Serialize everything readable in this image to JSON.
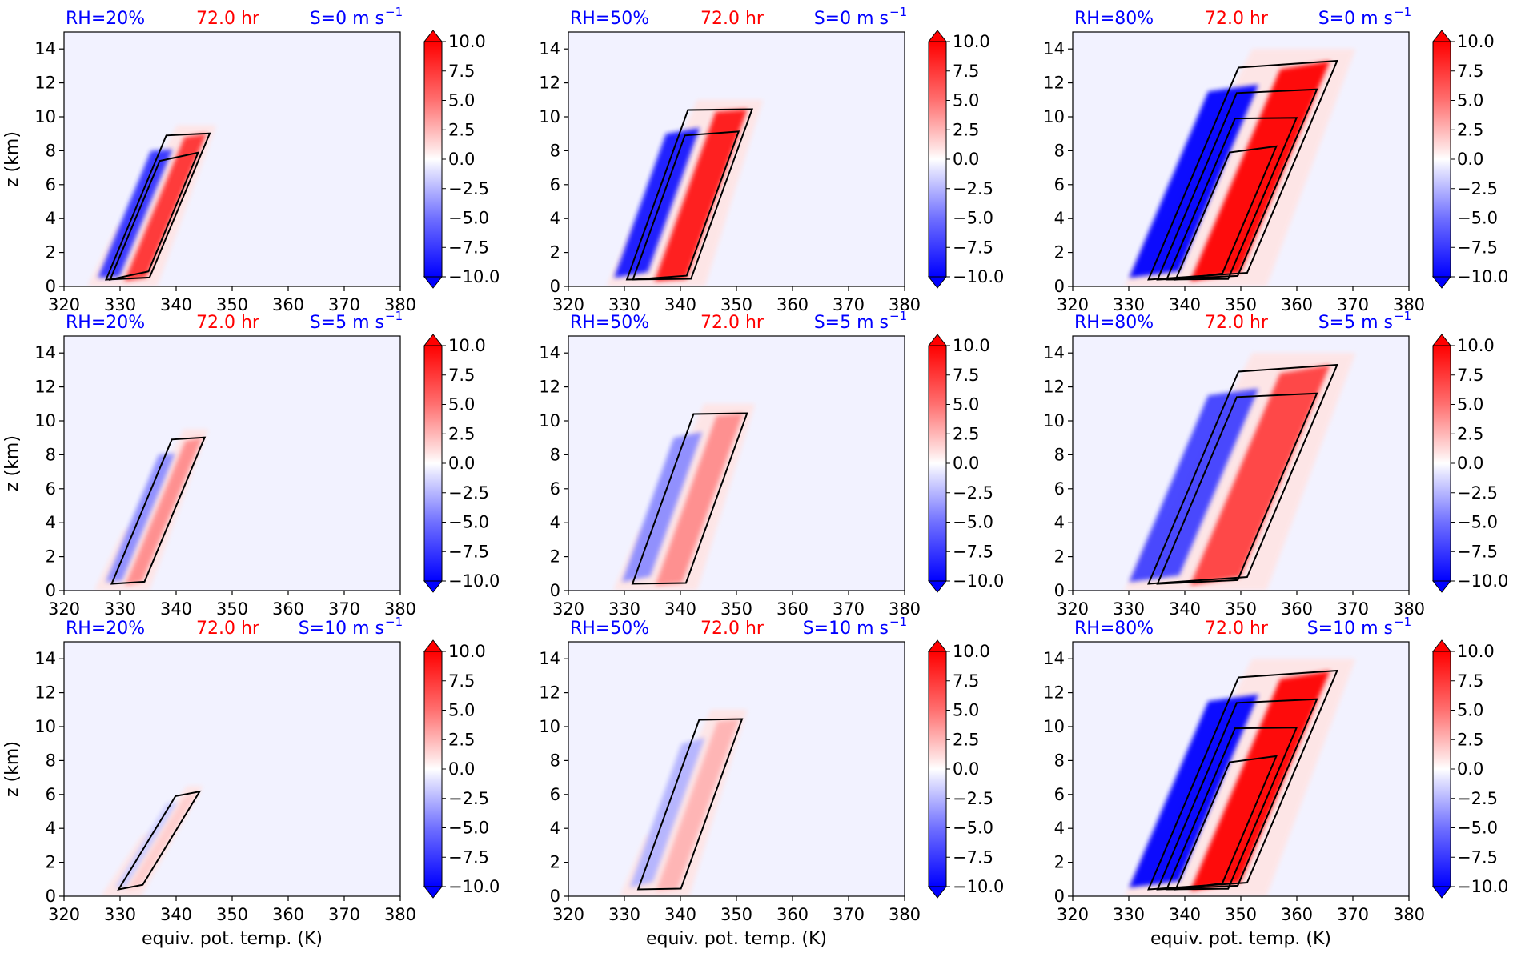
{
  "figure": {
    "x_label": "equiv. pot. temp. (K)",
    "y_label": "z (km)",
    "colorbar_ticks": [
      "10.0",
      "7.5",
      "5.0",
      "2.5",
      "0.0",
      "−2.5",
      "−5.0",
      "−7.5",
      "−10.0"
    ],
    "colors": {
      "positive": "#ff0000",
      "negative": "#0000ff",
      "background": "#f2f2ff",
      "contour": "#000000",
      "rh_label": "#0000ff",
      "time_label": "#ff0000",
      "shear_label": "#0000ff"
    }
  },
  "chart_data": {
    "type": "contourf",
    "description_note": "3x3 grid of filled-contour panels with black line contours overlaid; diverging red-blue colormap",
    "xlim": [
      320,
      380
    ],
    "ylim": [
      0,
      15
    ],
    "x_ticks": [
      "320",
      "330",
      "340",
      "350",
      "360",
      "370",
      "380"
    ],
    "y_ticks": [
      "0",
      "2",
      "4",
      "6",
      "8",
      "10",
      "12",
      "14"
    ],
    "colorbar_range": [
      -10,
      10
    ],
    "colorbar_levels": [
      10.0,
      7.5,
      5.0,
      2.5,
      0.0,
      -2.5,
      -5.0,
      -7.5,
      -10.0
    ],
    "colorbar_extend": "both",
    "panels": [
      {
        "rh": "RH=20%",
        "time": "72.0 hr",
        "shear": "S=0 m s",
        "shear_exp": "−1"
      },
      {
        "rh": "RH=50%",
        "time": "72.0 hr",
        "shear": "S=0 m s",
        "shear_exp": "−1"
      },
      {
        "rh": "RH=80%",
        "time": "72.0 hr",
        "shear": "S=0 m s",
        "shear_exp": "−1"
      },
      {
        "rh": "RH=20%",
        "time": "72.0 hr",
        "shear": "S=5 m s",
        "shear_exp": "−1"
      },
      {
        "rh": "RH=50%",
        "time": "72.0 hr",
        "shear": "S=5 m s",
        "shear_exp": "−1"
      },
      {
        "rh": "RH=80%",
        "time": "72.0 hr",
        "shear": "S=5 m s",
        "shear_exp": "−1"
      },
      {
        "rh": "RH=20%",
        "time": "72.0 hr",
        "shear": "S=10 m s",
        "shear_exp": "−1"
      },
      {
        "rh": "RH=50%",
        "time": "72.0 hr",
        "shear": "S=10 m s",
        "shear_exp": "−1"
      },
      {
        "rh": "RH=80%",
        "time": "72.0 hr",
        "shear": "S=10 m s",
        "shear_exp": "−1"
      }
    ]
  }
}
